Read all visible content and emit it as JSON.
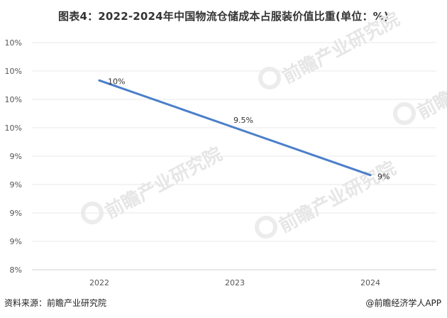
{
  "title": "图表4：2022-2024年中国物流仓储成本占服装价值比重(单位：%)",
  "footer": {
    "source": "资料来源：前瞻产业研究院",
    "brand": "@前瞻经济学人APP"
  },
  "watermark": "前瞻产业研究院",
  "chart_data": {
    "type": "line",
    "categories": [
      "2022",
      "2023",
      "2024"
    ],
    "series": [
      {
        "values": [
          10,
          9.5,
          9
        ]
      }
    ],
    "data_labels": [
      "10%",
      "9.5%",
      "9%"
    ],
    "y_tick_labels": [
      "8%",
      "9%",
      "9%",
      "9%",
      "9%",
      "10%",
      "10%",
      "10%",
      "10%"
    ],
    "ylim": [
      8,
      10.4
    ],
    "colors": {
      "line": "#4a7fc9",
      "grid": "#e8e8e8",
      "axis": "#d0d0d0"
    }
  }
}
